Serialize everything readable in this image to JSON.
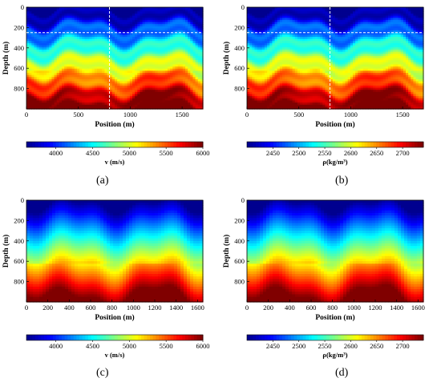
{
  "chart_data": [
    {
      "type": "heatmap",
      "panel_label": "(a)",
      "model": "velocity-true",
      "xlabel": "Position (m)",
      "ylabel": "Depth (m)",
      "x_ticks": [
        0,
        500,
        1000,
        1500
      ],
      "y_ticks": [
        0,
        200,
        400,
        600,
        800
      ],
      "xlim": [
        0,
        1700
      ],
      "ylim": [
        0,
        1000
      ],
      "y_reversed": true,
      "dashed_lines": {
        "vertical_x": 800,
        "horizontal_y": 250
      },
      "colorbar": {
        "label": "v (m/s)",
        "ticks": [
          4000,
          4500,
          5000,
          5500,
          6000
        ],
        "range": [
          3600,
          6000
        ]
      }
    },
    {
      "type": "heatmap",
      "panel_label": "(b)",
      "model": "density-true",
      "xlabel": "Position (m)",
      "ylabel": "Depth (m)",
      "x_ticks": [
        0,
        500,
        1000,
        1500
      ],
      "y_ticks": [
        0,
        200,
        400,
        600,
        800
      ],
      "xlim": [
        0,
        1700
      ],
      "ylim": [
        0,
        1000
      ],
      "y_reversed": true,
      "dashed_lines": {
        "vertical_x": 800,
        "horizontal_y": 250
      },
      "colorbar": {
        "label": "ρ(kg/m³)",
        "ticks": [
          2450,
          2500,
          2550,
          2600,
          2650,
          2700
        ],
        "range": [
          2400,
          2740
        ]
      }
    },
    {
      "type": "heatmap",
      "panel_label": "(c)",
      "model": "velocity-initial",
      "xlabel": "Position (m)",
      "ylabel": "Depth (m)",
      "x_ticks": [
        0,
        200,
        400,
        600,
        800,
        1000,
        1200,
        1400,
        1600
      ],
      "y_ticks": [
        0,
        200,
        400,
        600,
        800
      ],
      "xlim": [
        0,
        1650
      ],
      "ylim": [
        0,
        1000
      ],
      "y_reversed": true,
      "colorbar": {
        "label": "v (m/s)",
        "ticks": [
          4000,
          4500,
          5000,
          5500,
          6000
        ],
        "range": [
          3600,
          6000
        ]
      }
    },
    {
      "type": "heatmap",
      "panel_label": "(d)",
      "model": "density-initial",
      "xlabel": "Position (m)",
      "ylabel": "Depth (m)",
      "x_ticks": [
        0,
        200,
        400,
        600,
        800,
        1000,
        1200,
        1400,
        1600
      ],
      "y_ticks": [
        0,
        200,
        400,
        600,
        800
      ],
      "xlim": [
        0,
        1650
      ],
      "ylim": [
        0,
        1000
      ],
      "y_reversed": true,
      "colorbar": {
        "label": "ρ(kg/m³)",
        "ticks": [
          2450,
          2500,
          2550,
          2600,
          2650,
          2700
        ],
        "range": [
          2400,
          2740
        ]
      }
    }
  ],
  "colormap": [
    "#00008f",
    "#0000ff",
    "#0080ff",
    "#00ffff",
    "#80ff80",
    "#ffff00",
    "#ff8000",
    "#ff0000",
    "#800000"
  ],
  "dashed_line_color": "#ffffff"
}
